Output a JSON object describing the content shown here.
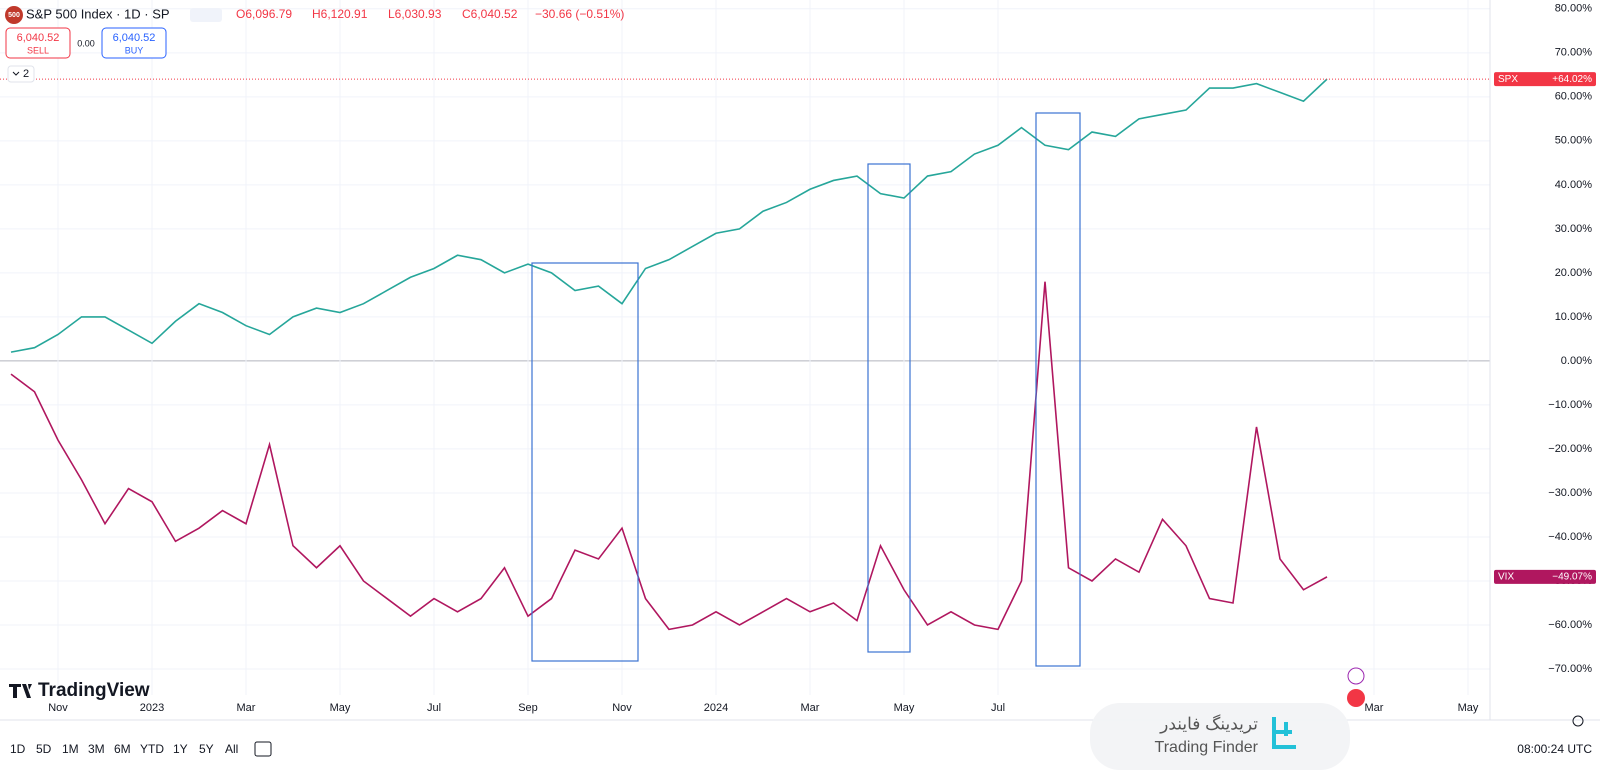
{
  "header": {
    "symbol": "S&P 500 Index · 1D · SP",
    "badge": "500",
    "ohlc": [
      "O6,096.79",
      "H6,120.91",
      "L6,030.93",
      "C6,040.52",
      "−30.66 (−0.51%)"
    ],
    "sell_price": "6,040.52",
    "sell": "SELL",
    "spread": "0.00",
    "buy_price": "6,040.52",
    "buy": "BUY",
    "indicators": "2"
  },
  "chart_data": {
    "type": "line",
    "categories": [
      "",
      "",
      "Nov",
      null,
      null,
      null,
      "2023",
      null,
      null,
      null,
      "Mar",
      null,
      null,
      null,
      "May",
      null,
      null,
      null,
      "Jul",
      null,
      null,
      null,
      "Sep",
      null,
      null,
      null,
      "Nov",
      null,
      null,
      null,
      "2024",
      null,
      null,
      null,
      "Mar",
      null,
      null,
      null,
      "May",
      null,
      null,
      null,
      "Jul",
      null,
      null,
      null,
      null,
      null,
      null,
      null,
      null,
      null,
      null,
      null,
      null,
      null,
      null,
      null,
      "Mar",
      null,
      null,
      null,
      "May"
    ],
    "series": [
      {
        "name": "SPX",
        "color": "#26a69a",
        "tag_color": "#f23645",
        "tag": "+64.02%",
        "values": [
          2,
          3,
          6,
          10,
          10,
          7,
          4,
          9,
          13,
          11,
          8,
          6,
          10,
          12,
          11,
          13,
          16,
          19,
          21,
          24,
          23,
          20,
          22,
          20,
          16,
          17,
          13,
          21,
          23,
          26,
          29,
          30,
          34,
          36,
          39,
          41,
          42,
          38,
          37,
          42,
          43,
          47,
          49,
          53,
          49,
          48,
          52,
          51,
          55,
          56,
          57,
          62,
          62,
          63,
          61,
          59,
          64.02,
          null,
          null,
          null,
          null,
          null,
          null
        ]
      },
      {
        "name": "VIX",
        "color": "#b0175f",
        "tag_color": "#b0175f",
        "tag": "−49.07%",
        "values": [
          -3,
          -7,
          -18,
          -27,
          -37,
          -29,
          -32,
          -41,
          -38,
          -34,
          -37,
          -19,
          -42,
          -47,
          -42,
          -50,
          -54,
          -58,
          -54,
          -57,
          -54,
          -47,
          -58,
          -54,
          -43,
          -45,
          -38,
          -54,
          -61,
          -60,
          -57,
          -60,
          -57,
          -54,
          -57,
          -55,
          -59,
          -42,
          -52,
          -60,
          -57,
          -60,
          -61,
          -50,
          18,
          -47,
          -50,
          -45,
          -48,
          -36,
          -42,
          -54,
          -55,
          -15,
          -45,
          -52,
          -49.07,
          null,
          null,
          null,
          null,
          null,
          null
        ]
      }
    ],
    "ylim": [
      -75,
      82
    ],
    "yticks": [
      {
        "value": -70,
        "label": "−70.00%"
      },
      {
        "value": -60,
        "label": "−60.00%"
      },
      {
        "value": -50,
        "label": "−50.00%"
      },
      {
        "value": -40,
        "label": "−40.00%"
      },
      {
        "value": -30,
        "label": "−30.00%"
      },
      {
        "value": -20,
        "label": "−20.00%"
      },
      {
        "value": -10,
        "label": "−10.00%"
      },
      {
        "value": 0,
        "label": "0.00%"
      },
      {
        "value": 10,
        "label": "10.00%"
      },
      {
        "value": 20,
        "label": "20.00%"
      },
      {
        "value": 30,
        "label": "30.00%"
      },
      {
        "value": 40,
        "label": "40.00%"
      },
      {
        "value": 50,
        "label": "50.00%"
      },
      {
        "value": 60,
        "label": "60.00%"
      },
      {
        "value": 70,
        "label": "70.00%"
      },
      {
        "value": 80,
        "label": "80.00%"
      }
    ],
    "grid": true
  },
  "toolbar": {
    "ranges": [
      "1D",
      "5D",
      "1M",
      "3M",
      "6M",
      "YTD",
      "1Y",
      "5Y",
      "All"
    ],
    "clock": "08:00:24 UTC"
  },
  "brand": "TradingView",
  "watermark": {
    "fa": "تریدینگ فایندر",
    "en": "Trading Finder"
  }
}
